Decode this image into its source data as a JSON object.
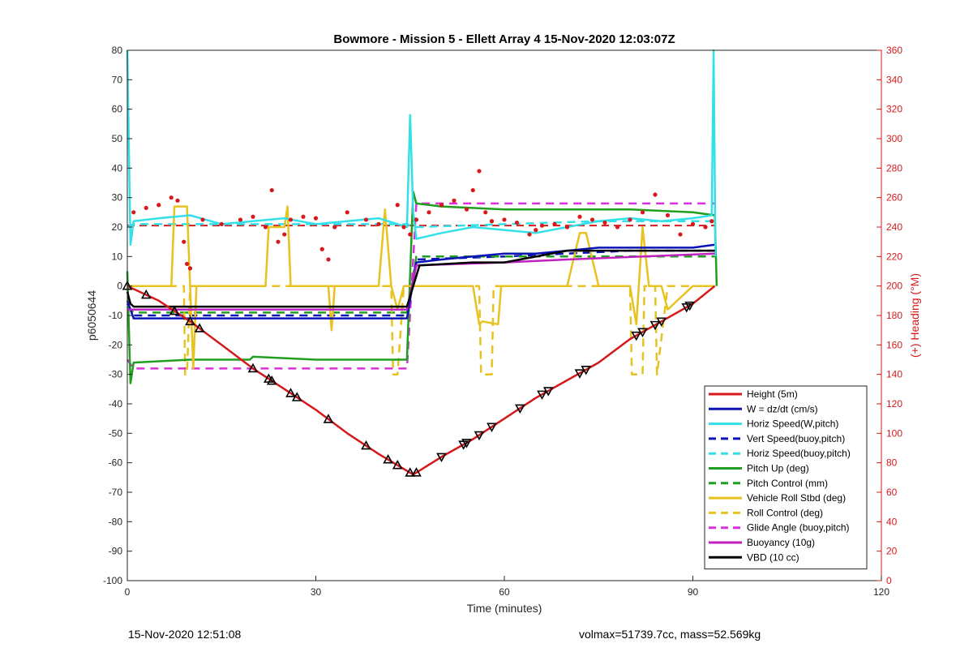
{
  "chart_data": {
    "type": "line",
    "title": "Bowmore - Mission 5 - Ellett Array 4 15-Nov-2020 12:03:07Z",
    "xlabel": "Time (minutes)",
    "ylabel": "p6050644",
    "y2label": "(+) Heading (°M)",
    "xlim": [
      0,
      120
    ],
    "ylim": [
      -100,
      80
    ],
    "y2lim": [
      0,
      360
    ],
    "xticks": [
      0,
      30,
      60,
      90,
      120
    ],
    "yticks": [
      -100,
      -90,
      -80,
      -70,
      -60,
      -50,
      -40,
      -30,
      -20,
      -10,
      0,
      10,
      20,
      30,
      40,
      50,
      60,
      70,
      80
    ],
    "y2ticks": [
      0,
      20,
      40,
      60,
      80,
      100,
      120,
      140,
      160,
      180,
      200,
      220,
      240,
      260,
      280,
      300,
      320,
      340,
      360
    ],
    "legend_position": "lower-right",
    "series": [
      {
        "name": "Height (5m)",
        "color": "#d7191c",
        "style": "solid",
        "x": [
          0,
          5,
          10,
          15,
          20,
          25,
          30,
          35,
          40,
          45.5,
          50,
          55,
          60,
          65,
          70,
          75,
          80,
          85,
          90,
          93.5
        ],
        "y": [
          0,
          -5,
          -12,
          -20,
          -28,
          -35,
          -42,
          -50,
          -57,
          -64,
          -58,
          -52,
          -45,
          -38,
          -32,
          -26,
          -18,
          -12,
          -6,
          0
        ]
      },
      {
        "name": "W = dz/dt (cm/s)",
        "color": "#0a14b4",
        "style": "solid",
        "x": [
          0,
          1,
          5,
          10,
          15,
          20,
          25,
          30,
          35,
          40,
          44.5,
          46,
          50,
          55,
          60,
          65,
          70,
          75,
          80,
          85,
          90,
          93.5
        ],
        "y": [
          -5,
          -11,
          -11,
          -11,
          -11,
          -11,
          -11,
          -11,
          -11,
          -11,
          -11,
          8,
          9,
          10,
          11,
          11,
          12,
          13,
          13,
          13,
          13,
          14
        ]
      },
      {
        "name": "Horiz Speed(W,pitch)",
        "color": "#33e0e8",
        "style": "solid",
        "x": [
          0,
          0.5,
          1,
          5,
          10,
          15,
          20,
          25,
          30,
          35,
          40,
          44.5,
          45,
          45.5,
          46,
          50,
          55,
          60,
          65,
          70,
          75,
          80,
          85,
          90,
          93,
          93.3,
          93.6
        ],
        "y": [
          80,
          14,
          22,
          23,
          24,
          21,
          22,
          23,
          21,
          22,
          23,
          20,
          58,
          25,
          16,
          18,
          20,
          19,
          18,
          20,
          22,
          23,
          22,
          23,
          24,
          80,
          10
        ]
      },
      {
        "name": "Vert Speed(buoy,pitch)",
        "color": "#0a14b4",
        "style": "dashed",
        "x": [
          0,
          1,
          44.5,
          46,
          60,
          70,
          80,
          93.5
        ],
        "y": [
          -6,
          -10,
          -10,
          9,
          10,
          11,
          12,
          12
        ]
      },
      {
        "name": "Horiz Speed(buoy,pitch)",
        "color": "#33e0e8",
        "style": "dashed",
        "x": [
          0,
          1,
          44.5,
          46,
          60,
          75,
          93.5
        ],
        "y": [
          20,
          21,
          21,
          20,
          21,
          22,
          22
        ]
      },
      {
        "name": "Pitch Up (deg)",
        "color": "#1f9e1f",
        "style": "solid",
        "x": [
          0,
          0.5,
          1,
          10,
          19.5,
          20,
          30,
          44.5,
          45.5,
          46,
          50,
          60,
          70,
          80,
          90,
          93.5,
          93.8
        ],
        "y": [
          5,
          -33,
          -26,
          -25,
          -25,
          -24,
          -25,
          -25,
          32,
          28,
          27,
          26,
          26,
          26,
          25,
          24,
          0
        ]
      },
      {
        "name": "Pitch Control (mm)",
        "color": "#1f9e1f",
        "style": "dashed",
        "x": [
          0,
          1,
          44.5,
          46,
          93.5
        ],
        "y": [
          -7,
          -9,
          -9,
          10,
          10
        ]
      },
      {
        "name": "Vehicle Roll Stbd (deg)",
        "color": "#e8c21f",
        "style": "solid",
        "x": [
          0,
          5,
          7,
          7.5,
          9.5,
          10,
          10.5,
          11,
          20,
          22,
          22.5,
          25,
          25.5,
          26,
          30,
          32,
          32.5,
          33,
          40,
          41,
          42,
          43,
          44,
          45,
          46,
          55,
          56,
          56.5,
          59,
          59.5,
          60,
          70,
          72,
          73,
          75,
          80,
          81,
          82,
          83,
          85,
          86,
          90,
          93.5
        ],
        "y": [
          0,
          0,
          0,
          27,
          27,
          0,
          -28,
          0,
          0,
          0,
          20,
          20,
          27,
          0,
          0,
          0,
          -15,
          0,
          0,
          26,
          0,
          -8,
          0,
          0,
          0,
          0,
          -13,
          -12,
          -13,
          0,
          0,
          0,
          18,
          18,
          0,
          0,
          -13,
          20,
          0,
          0,
          -8,
          0,
          0
        ]
      },
      {
        "name": "Roll Control (deg)",
        "color": "#e8c21f",
        "style": "dashed",
        "x": [
          0,
          9,
          9.2,
          9.5,
          10,
          25,
          40,
          42,
          42.3,
          43,
          44,
          45,
          55,
          56,
          56.3,
          58,
          58.3,
          60,
          75,
          80,
          80.3,
          82,
          82.3,
          84,
          84.3,
          86,
          93.5
        ],
        "y": [
          0,
          0,
          -30,
          -30,
          0,
          0,
          0,
          0,
          -30,
          -30,
          0,
          0,
          0,
          0,
          -30,
          -30,
          0,
          0,
          0,
          0,
          -30,
          -30,
          0,
          0,
          -30,
          0,
          0
        ]
      },
      {
        "name": "Glide Angle (buoy,pitch)",
        "color": "#d930d9",
        "style": "dashed",
        "x": [
          0,
          1,
          44.5,
          46,
          93.5
        ],
        "y": [
          -25,
          -28,
          -28,
          28,
          28
        ]
      },
      {
        "name": "Buoyancy (10g)",
        "color": "#c020c0",
        "style": "solid",
        "x": [
          0,
          1,
          44.5,
          46,
          60,
          70,
          93.5
        ],
        "y": [
          -8,
          -8,
          -8,
          7,
          8,
          9,
          11
        ]
      },
      {
        "name": "VBD (10 cc)",
        "color": "#000000",
        "style": "solid",
        "x": [
          0,
          0.5,
          1,
          44.5,
          46.5,
          55,
          60,
          70,
          75,
          93.5
        ],
        "y": [
          -2,
          -6,
          -7,
          -7,
          7,
          8,
          8,
          12,
          12,
          12
        ]
      }
    ],
    "heading_series": {
      "name": "Heading (°M)",
      "axis": "right",
      "color": "#d7191c",
      "style": "dots",
      "x": [
        1,
        3,
        5,
        7,
        8,
        9,
        9.5,
        10,
        12,
        15,
        18,
        20,
        22,
        23,
        24,
        25,
        26,
        28,
        30,
        31,
        32,
        33,
        35,
        38,
        40,
        43,
        44,
        45,
        46,
        48,
        50,
        52,
        54,
        55,
        56,
        57,
        58,
        60,
        62,
        64,
        65,
        66,
        68,
        70,
        72,
        74,
        76,
        78,
        80,
        82,
        84,
        86,
        88,
        90,
        92,
        93
      ],
      "y": [
        250,
        253,
        255,
        260,
        258,
        230,
        215,
        212,
        245,
        242,
        245,
        247,
        240,
        265,
        230,
        235,
        245,
        247,
        246,
        225,
        218,
        240,
        250,
        245,
        242,
        255,
        240,
        235,
        245,
        250,
        255,
        258,
        252,
        265,
        278,
        250,
        244,
        245,
        243,
        235,
        238,
        241,
        242,
        240,
        247,
        245,
        243,
        240,
        245,
        250,
        262,
        248,
        235,
        242,
        240,
        244
      ]
    },
    "heading_mean": {
      "name": "Heading mean",
      "color": "#d7191c",
      "style": "dashed",
      "x": [
        0,
        93.5
      ],
      "y": [
        241,
        241
      ]
    },
    "annotations": {
      "up_triangle_x": [
        0,
        3,
        7.5,
        10,
        11.5,
        20,
        22.5,
        23,
        26,
        27,
        32,
        38,
        41.5,
        43,
        45,
        46
      ],
      "down_triangle_x": [
        50,
        53.5,
        54,
        56,
        58,
        62.5,
        66,
        67,
        72,
        73,
        81,
        82,
        84,
        85,
        89,
        89.5
      ]
    }
  },
  "footer": {
    "left": "15-Nov-2020 12:51:08",
    "right": "volmax=51739.7cc, mass=52.569kg"
  }
}
